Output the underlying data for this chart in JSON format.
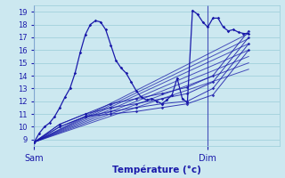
{
  "xlabel": "Température (°c)",
  "bg_color": "#cce8f0",
  "grid_color": "#99ccd9",
  "line_color": "#1a1aaa",
  "xlim": [
    0,
    48
  ],
  "ylim": [
    8.5,
    19.5
  ],
  "yticks": [
    9,
    10,
    11,
    12,
    13,
    14,
    15,
    16,
    17,
    18,
    19
  ],
  "sam_x": 0,
  "dim_x": 34,
  "observed_line": [
    [
      0,
      8.8
    ],
    [
      1,
      9.5
    ],
    [
      2,
      10.0
    ],
    [
      3,
      10.3
    ],
    [
      4,
      10.8
    ],
    [
      5,
      11.5
    ],
    [
      6,
      12.3
    ],
    [
      7,
      13.0
    ],
    [
      8,
      14.2
    ],
    [
      9,
      15.8
    ],
    [
      10,
      17.2
    ],
    [
      11,
      18.0
    ],
    [
      12,
      18.3
    ],
    [
      13,
      18.2
    ],
    [
      14,
      17.6
    ],
    [
      15,
      16.4
    ],
    [
      16,
      15.2
    ],
    [
      17,
      14.6
    ],
    [
      18,
      14.2
    ],
    [
      19,
      13.5
    ],
    [
      20,
      12.8
    ],
    [
      21,
      12.3
    ],
    [
      22,
      12.1
    ],
    [
      23,
      12.2
    ],
    [
      24,
      12.0
    ],
    [
      25,
      11.8
    ],
    [
      26,
      12.1
    ],
    [
      27,
      12.5
    ],
    [
      28,
      13.8
    ],
    [
      29,
      12.2
    ],
    [
      30,
      11.9
    ],
    [
      31,
      19.1
    ],
    [
      32,
      18.8
    ],
    [
      33,
      18.2
    ],
    [
      34,
      17.8
    ],
    [
      35,
      18.5
    ],
    [
      36,
      18.5
    ],
    [
      37,
      17.8
    ],
    [
      38,
      17.5
    ],
    [
      39,
      17.6
    ],
    [
      40,
      17.4
    ],
    [
      41,
      17.3
    ],
    [
      42,
      17.3
    ]
  ],
  "straight_lines": [
    [
      [
        0,
        8.8
      ],
      [
        42,
        17.3
      ]
    ],
    [
      [
        0,
        8.8
      ],
      [
        42,
        16.9
      ]
    ],
    [
      [
        0,
        8.8
      ],
      [
        42,
        16.5
      ]
    ],
    [
      [
        0,
        8.8
      ],
      [
        42,
        16.0
      ]
    ],
    [
      [
        0,
        8.8
      ],
      [
        42,
        15.5
      ]
    ],
    [
      [
        0,
        8.8
      ],
      [
        42,
        15.0
      ]
    ],
    [
      [
        0,
        8.8
      ],
      [
        42,
        14.5
      ]
    ]
  ],
  "curved_lines": [
    [
      [
        0,
        8.8
      ],
      [
        5,
        10.2
      ],
      [
        10,
        11.0
      ],
      [
        15,
        11.8
      ],
      [
        20,
        12.2
      ],
      [
        25,
        12.6
      ],
      [
        30,
        13.1
      ],
      [
        35,
        14.0
      ],
      [
        42,
        17.5
      ]
    ],
    [
      [
        0,
        8.8
      ],
      [
        5,
        10.2
      ],
      [
        10,
        11.0
      ],
      [
        15,
        11.5
      ],
      [
        20,
        11.8
      ],
      [
        25,
        12.2
      ],
      [
        30,
        12.6
      ],
      [
        35,
        13.5
      ],
      [
        42,
        17.0
      ]
    ],
    [
      [
        0,
        8.8
      ],
      [
        5,
        10.0
      ],
      [
        10,
        10.8
      ],
      [
        15,
        11.2
      ],
      [
        20,
        11.5
      ],
      [
        25,
        11.8
      ],
      [
        30,
        12.0
      ],
      [
        35,
        13.0
      ],
      [
        42,
        16.5
      ]
    ],
    [
      [
        0,
        8.8
      ],
      [
        5,
        10.0
      ],
      [
        10,
        10.8
      ],
      [
        15,
        11.0
      ],
      [
        20,
        11.2
      ],
      [
        25,
        11.5
      ],
      [
        30,
        11.8
      ],
      [
        35,
        12.5
      ],
      [
        42,
        16.0
      ]
    ]
  ]
}
